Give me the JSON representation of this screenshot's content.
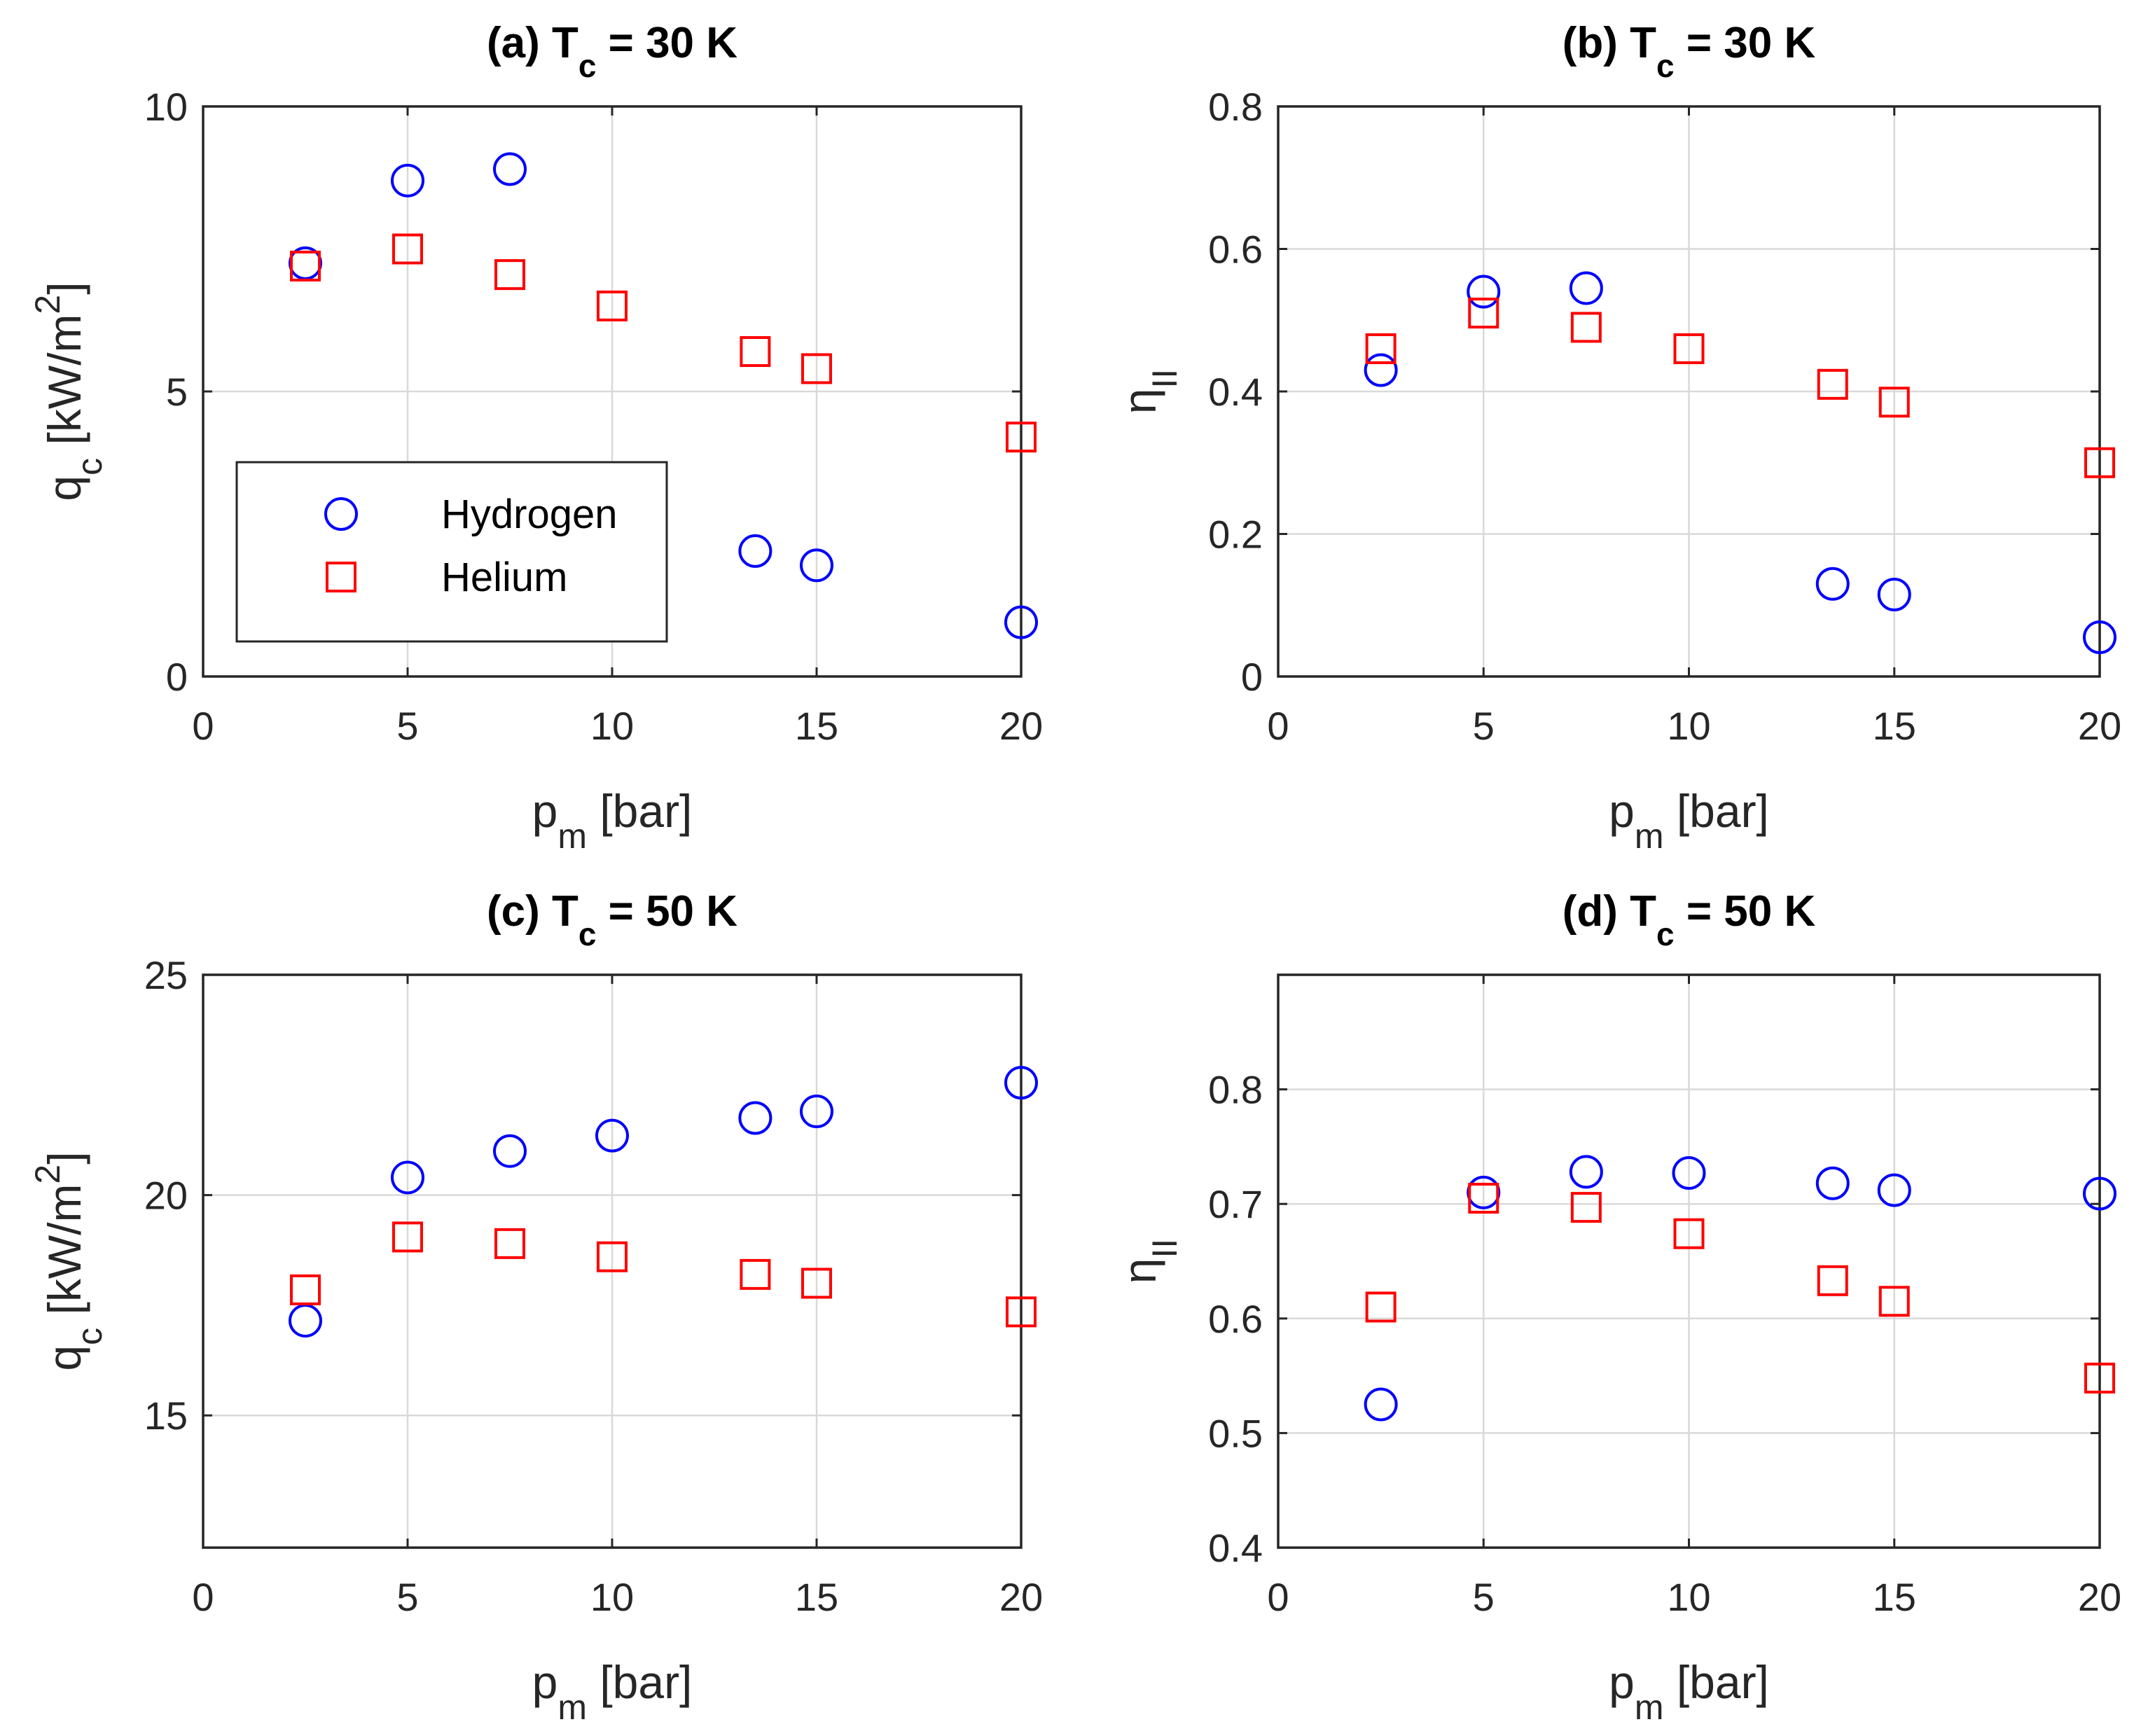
{
  "colors": {
    "hydrogen": "#0000ff",
    "helium": "#ff0000",
    "axis": "#262626",
    "grid": "#d9d9d9"
  },
  "legend": {
    "entries": [
      {
        "label": "Hydrogen",
        "marker": "circle"
      },
      {
        "label": "Helium",
        "marker": "square"
      }
    ]
  },
  "chart_data": [
    {
      "type": "scatter",
      "panel": "a",
      "title": {
        "prefix": "(a) T",
        "sub": "c",
        "suffix": " = 30 K"
      },
      "xlabel": {
        "main": "p",
        "sub": "m",
        "unit": " [bar]"
      },
      "ylabel": {
        "main": "q",
        "sub": "c",
        "unit": " [kW/m",
        "sup": "2",
        "close": "]"
      },
      "xlim": [
        0,
        20
      ],
      "ylim": [
        0,
        10
      ],
      "xticks": [
        0,
        5,
        10,
        15,
        20
      ],
      "yticks": [
        0,
        5,
        10
      ],
      "grid": true,
      "legend_position": "bottom-left",
      "series": [
        {
          "name": "Hydrogen",
          "marker": "circle",
          "x": [
            2.5,
            5,
            7.5,
            13.5,
            15,
            20
          ],
          "y": [
            7.25,
            8.7,
            8.9,
            2.2,
            1.95,
            0.95
          ]
        },
        {
          "name": "Helium",
          "marker": "square",
          "x": [
            2.5,
            5,
            7.5,
            10,
            13.5,
            15,
            20
          ],
          "y": [
            7.2,
            7.5,
            7.05,
            6.5,
            5.7,
            5.4,
            4.2
          ]
        }
      ]
    },
    {
      "type": "scatter",
      "panel": "b",
      "title": {
        "prefix": "(b) T",
        "sub": "c",
        "suffix": " = 30 K"
      },
      "xlabel": {
        "main": "p",
        "sub": "m",
        "unit": " [bar]"
      },
      "ylabel": {
        "main": "η",
        "sub": "II"
      },
      "xlim": [
        0,
        20
      ],
      "ylim": [
        0,
        0.8
      ],
      "xticks": [
        0,
        5,
        10,
        15,
        20
      ],
      "yticks": [
        0,
        0.2,
        0.4,
        0.6,
        0.8
      ],
      "grid": true,
      "series": [
        {
          "name": "Hydrogen",
          "marker": "circle",
          "x": [
            2.5,
            5,
            7.5,
            13.5,
            15,
            20
          ],
          "y": [
            0.43,
            0.54,
            0.545,
            0.13,
            0.115,
            0.055
          ]
        },
        {
          "name": "Helium",
          "marker": "square",
          "x": [
            2.5,
            5,
            7.5,
            10,
            13.5,
            15,
            20
          ],
          "y": [
            0.46,
            0.51,
            0.49,
            0.46,
            0.41,
            0.385,
            0.3
          ]
        }
      ]
    },
    {
      "type": "scatter",
      "panel": "c",
      "title": {
        "prefix": "(c) T",
        "sub": "c",
        "suffix": " = 50 K"
      },
      "xlabel": {
        "main": "p",
        "sub": "m",
        "unit": " [bar]"
      },
      "ylabel": {
        "main": "q",
        "sub": "c",
        "unit": " [kW/m",
        "sup": "2",
        "close": "]"
      },
      "xlim": [
        0,
        20
      ],
      "ylim": [
        12,
        25
      ],
      "xticks": [
        0,
        5,
        10,
        15,
        20
      ],
      "yticks": [
        15,
        20,
        25
      ],
      "grid": true,
      "series": [
        {
          "name": "Hydrogen",
          "marker": "circle",
          "x": [
            2.5,
            5,
            7.5,
            10,
            13.5,
            15,
            20
          ],
          "y": [
            17.15,
            20.4,
            21.0,
            21.35,
            21.75,
            21.9,
            22.55
          ]
        },
        {
          "name": "Helium",
          "marker": "square",
          "x": [
            2.5,
            5,
            7.5,
            10,
            13.5,
            15,
            20
          ],
          "y": [
            17.85,
            19.05,
            18.9,
            18.6,
            18.2,
            18.0,
            17.35
          ]
        }
      ]
    },
    {
      "type": "scatter",
      "panel": "d",
      "title": {
        "prefix": "(d) T",
        "sub": "c",
        "suffix": " = 50 K"
      },
      "xlabel": {
        "main": "p",
        "sub": "m",
        "unit": " [bar]"
      },
      "ylabel": {
        "main": "η",
        "sub": "II"
      },
      "xlim": [
        0,
        20
      ],
      "ylim": [
        0.4,
        0.9
      ],
      "xticks": [
        0,
        5,
        10,
        15,
        20
      ],
      "yticks": [
        0.4,
        0.5,
        0.6,
        0.7,
        0.8
      ],
      "grid": true,
      "series": [
        {
          "name": "Hydrogen",
          "marker": "circle",
          "x": [
            2.5,
            5,
            7.5,
            10,
            13.5,
            15,
            20
          ],
          "y": [
            0.525,
            0.71,
            0.728,
            0.727,
            0.718,
            0.712,
            0.709
          ]
        },
        {
          "name": "Helium",
          "marker": "square",
          "x": [
            2.5,
            5,
            7.5,
            10,
            13.5,
            15,
            20
          ],
          "y": [
            0.61,
            0.705,
            0.697,
            0.674,
            0.633,
            0.615,
            0.548
          ]
        }
      ]
    }
  ]
}
